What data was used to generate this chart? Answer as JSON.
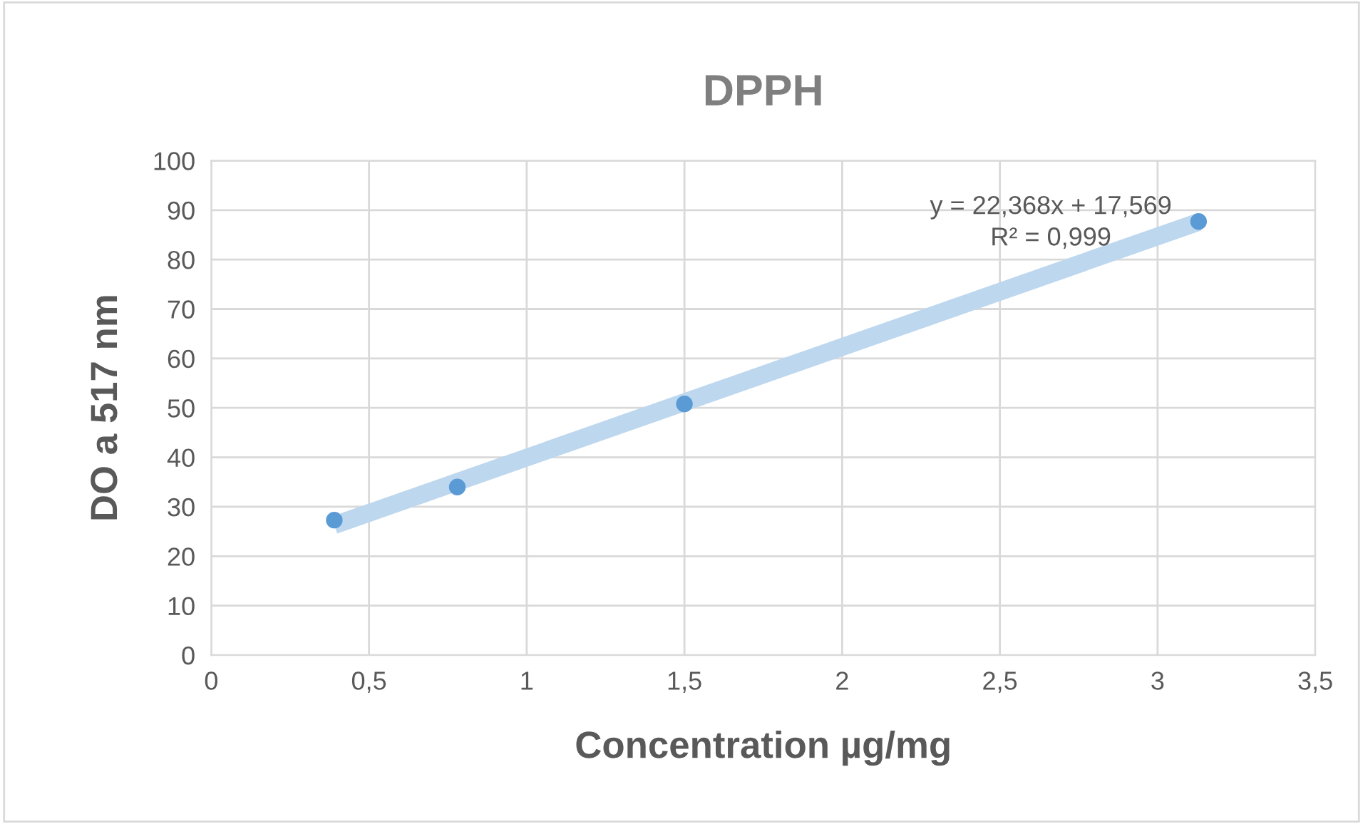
{
  "chart_data": {
    "type": "scatter",
    "title": "DPPH",
    "xlabel": "Concentration µg/mg",
    "ylabel": "DO a 517 nm",
    "xlim": [
      0,
      3.5
    ],
    "ylim": [
      0,
      100
    ],
    "xticks": [
      0,
      {
        "value": 0.5,
        "label": "0,5"
      },
      1,
      {
        "value": 1.5,
        "label": "1,5"
      },
      2,
      {
        "value": 2.5,
        "label": "2,5"
      },
      3,
      {
        "value": 3.5,
        "label": "3,5"
      }
    ],
    "yticks": [
      0,
      10,
      20,
      30,
      40,
      50,
      60,
      70,
      80,
      90,
      100
    ],
    "grid": true,
    "marker": "circle",
    "series": [
      {
        "type": "line",
        "marker": "none",
        "color": "#bdd7ee",
        "x": [
          0.39,
          3.13
        ],
        "values": [
          26.3,
          87.6
        ]
      },
      {
        "color": "#5b9bd5",
        "x": [
          0.39,
          0.78,
          1.5,
          3.13
        ],
        "values": [
          27.3,
          34,
          50.8,
          87.7
        ]
      }
    ],
    "annotations": [
      "y = 22,368x + 17,569\nR² = 0,999"
    ]
  }
}
